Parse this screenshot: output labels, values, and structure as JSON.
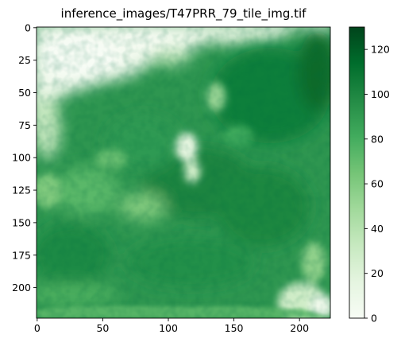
{
  "chart_data": {
    "type": "heatmap",
    "title": "inference_images/T47PRR_79_tile_img.tif",
    "xlabel": "",
    "ylabel": "",
    "colormap": "Greens",
    "grid": false,
    "image_size": [
      224,
      224
    ],
    "xlim": [
      -0.5,
      223.5
    ],
    "ylim": [
      223.5,
      -0.5
    ],
    "x_ticks": [
      0,
      50,
      100,
      150,
      200
    ],
    "y_ticks": [
      0,
      25,
      50,
      75,
      100,
      125,
      150,
      175,
      200
    ],
    "colorbar": {
      "range": [
        0,
        130
      ],
      "ticks": [
        0,
        20,
        40,
        60,
        80,
        100,
        120
      ],
      "placement": "right"
    },
    "approx_values": {
      "upper_left_clear_region": 10,
      "central_dense_region": 100,
      "dark_cluster_top_right": 120,
      "light_patch_center": 20,
      "bottom_right_corner": 15,
      "bottom_band": 70
    }
  }
}
